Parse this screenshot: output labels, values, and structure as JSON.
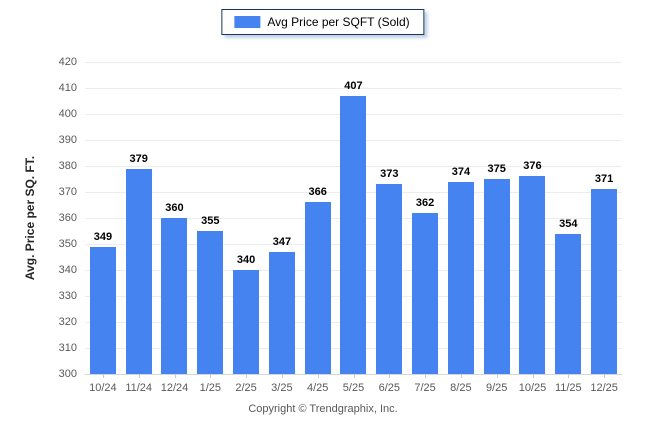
{
  "chart_data": {
    "type": "bar",
    "title": "",
    "legend": "Avg Price per SQFT (Sold)",
    "legend_position": "top-center",
    "ylabel": "Avg. Price per SQ. FT.",
    "xlabel": "",
    "ylim": [
      300,
      420
    ],
    "ytick_step": 10,
    "grid": true,
    "bar_color": "#4584f0",
    "categories": [
      "10/24",
      "11/24",
      "12/24",
      "1/25",
      "2/25",
      "3/25",
      "4/25",
      "5/25",
      "6/25",
      "7/25",
      "8/25",
      "9/25",
      "10/25",
      "11/25",
      "12/25"
    ],
    "values": [
      349,
      379,
      360,
      355,
      340,
      347,
      366,
      407,
      373,
      362,
      374,
      375,
      376,
      354,
      371
    ]
  },
  "footer": {
    "copyright": "Copyright © Trendgraphix, Inc."
  }
}
